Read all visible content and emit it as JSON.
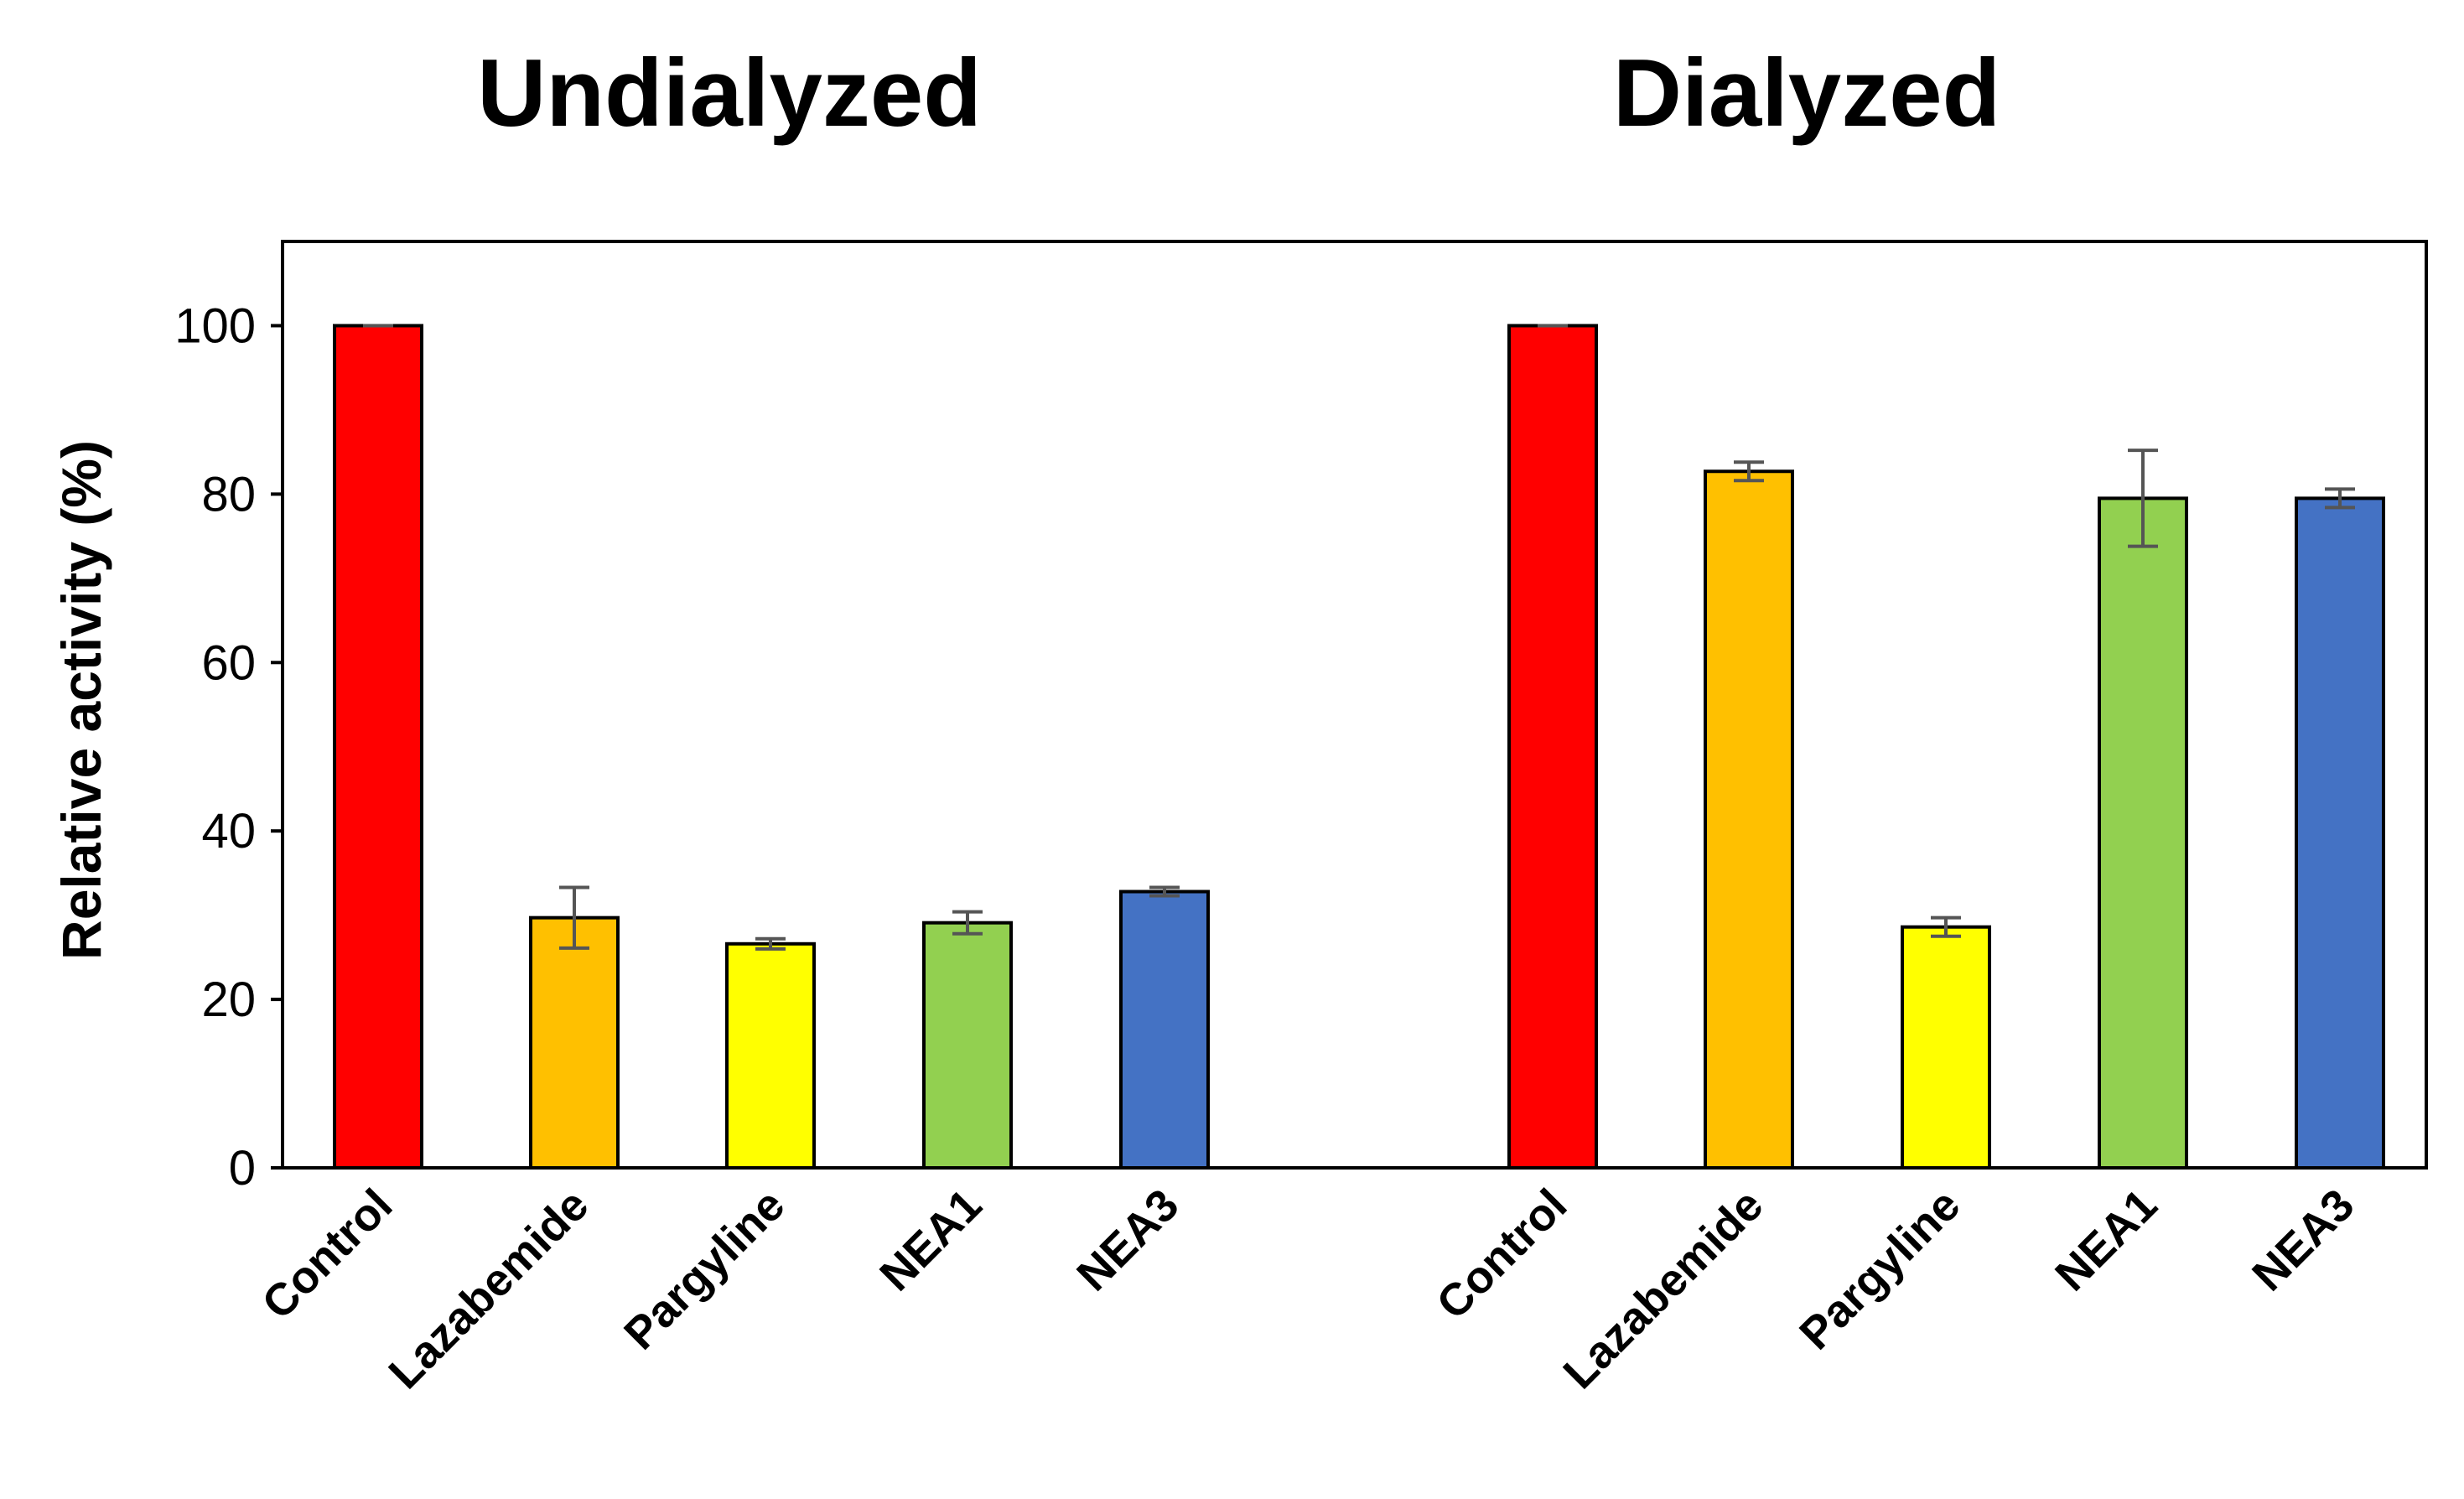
{
  "chart_data": {
    "type": "bar",
    "ylabel": "Relative activity (%)",
    "ylim": [
      0,
      110
    ],
    "yticks": [
      0,
      20,
      40,
      60,
      80,
      100
    ],
    "grid": false,
    "legend": "none",
    "groups": [
      {
        "title": "Undialyzed",
        "categories": [
          "Control",
          "Lazabemide",
          "Pargyline",
          "NEA1",
          "NEA3"
        ],
        "values": [
          100,
          29.7,
          26.6,
          29.1,
          32.8
        ],
        "errors": [
          0,
          3.6,
          0.6,
          1.3,
          0.5
        ],
        "colors": [
          "#ff0000",
          "#ffc000",
          "#ffff00",
          "#92d050",
          "#4472c4"
        ]
      },
      {
        "title": "Dialyzed",
        "categories": [
          "Control",
          "Lazabemide",
          "Pargyline",
          "NEA1",
          "NEA3"
        ],
        "values": [
          100,
          82.7,
          28.6,
          79.5,
          79.5
        ],
        "errors": [
          0,
          1.1,
          1.1,
          5.7,
          1.1
        ],
        "colors": [
          "#ff0000",
          "#ffc000",
          "#ffff00",
          "#92d050",
          "#4472c4"
        ]
      }
    ]
  }
}
